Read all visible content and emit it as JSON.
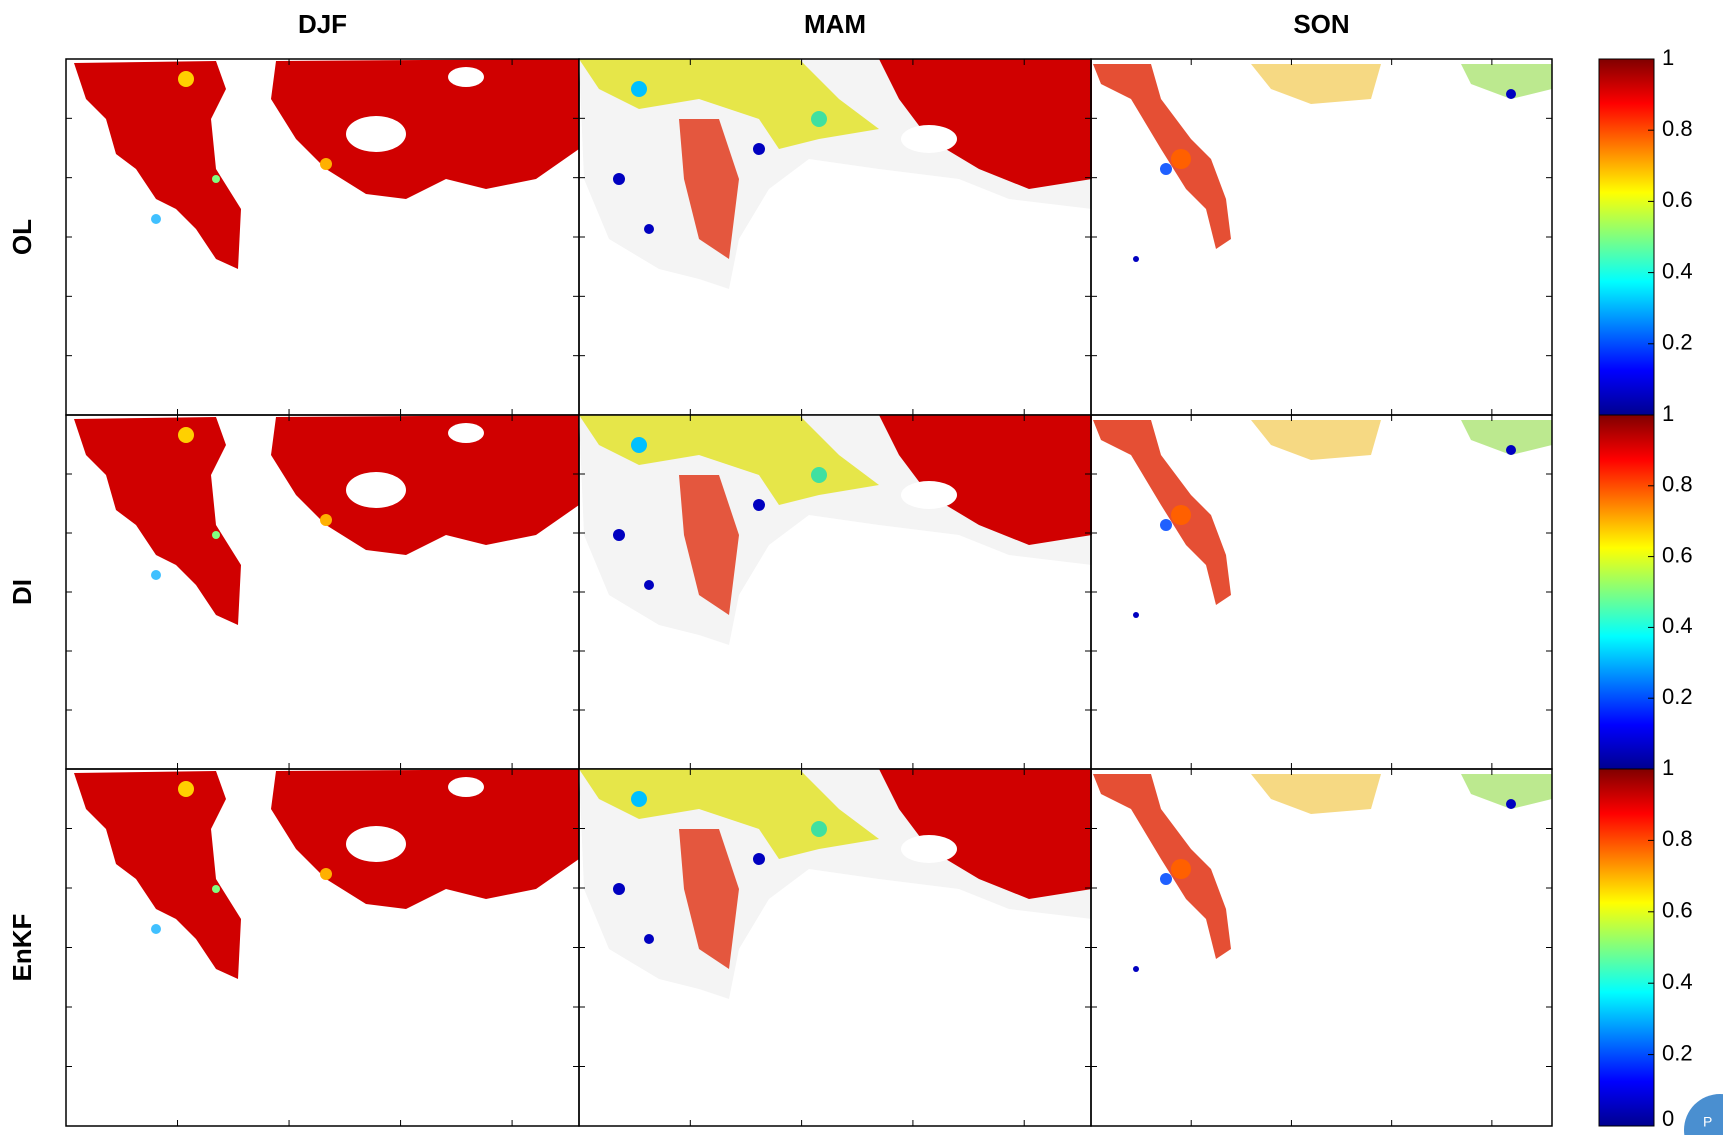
{
  "columns": [
    "DJF",
    "MAM",
    "SON"
  ],
  "rows": [
    "OL",
    "DI",
    "EnKF"
  ],
  "colormap": "jet",
  "colorbars": [
    {
      "ylim": [
        0,
        1
      ],
      "yticks": [
        0.2,
        0.4,
        0.6,
        0.8,
        1
      ]
    },
    {
      "ylim": [
        0,
        1
      ],
      "yticks": [
        0.2,
        0.4,
        0.6,
        0.8,
        1
      ]
    },
    {
      "ylim": [
        0,
        1
      ],
      "yticks": [
        0,
        0.2,
        0.4,
        0.6,
        0.8,
        1
      ]
    }
  ],
  "badge": "P"
}
